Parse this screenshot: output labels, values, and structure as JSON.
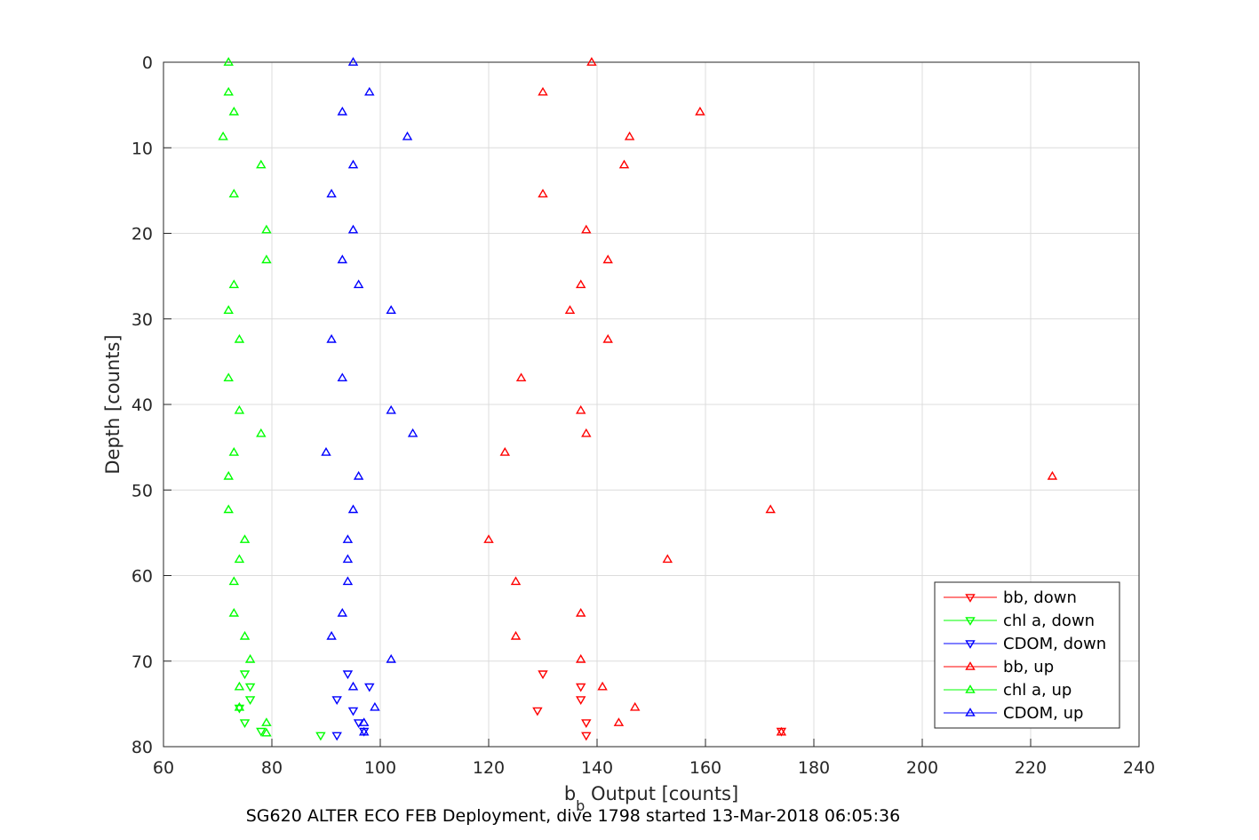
{
  "chart_data": {
    "type": "scatter",
    "xlabel_base": "b",
    "xlabel_subscript": "b",
    "xlabel_rest": " Output [counts]",
    "ylabel": "Depth [counts]",
    "caption": "SG620 ALTER ECO FEB Deployment, dive 1798 started 13-Mar-2018 06:05:36",
    "xlim": [
      60,
      240
    ],
    "ylim": [
      0,
      80
    ],
    "y_reversed": true,
    "grid": true,
    "xticks": [
      "60",
      "80",
      "100",
      "120",
      "140",
      "160",
      "180",
      "200",
      "220",
      "240"
    ],
    "yticks": [
      "0",
      "10",
      "20",
      "30",
      "40",
      "50",
      "60",
      "70",
      "80"
    ],
    "legend_position": "bottom-right",
    "series": [
      {
        "name": "bb, down",
        "color": "#ff0000",
        "marker": "triangle-down",
        "points": [
          [
            130,
            71.5
          ],
          [
            137,
            73
          ],
          [
            137,
            74.5
          ],
          [
            129,
            75.8
          ],
          [
            138,
            77.2
          ],
          [
            174,
            78.2
          ],
          [
            138,
            78.7
          ]
        ]
      },
      {
        "name": "chl a, down",
        "color": "#00ff00",
        "marker": "triangle-down",
        "points": [
          [
            75,
            71.5
          ],
          [
            76,
            73
          ],
          [
            76,
            74.5
          ],
          [
            74,
            75.5
          ],
          [
            75,
            77.2
          ],
          [
            78,
            78.2
          ],
          [
            89,
            78.7
          ]
        ]
      },
      {
        "name": "CDOM, down",
        "color": "#0000ff",
        "marker": "triangle-down",
        "points": [
          [
            94,
            71.5
          ],
          [
            98,
            73
          ],
          [
            92,
            74.5
          ],
          [
            95,
            75.8
          ],
          [
            96,
            77.2
          ],
          [
            97,
            78.2
          ],
          [
            92,
            78.7
          ]
        ]
      },
      {
        "name": "bb, up",
        "color": "#ff0000",
        "marker": "triangle-up",
        "points": [
          [
            139,
            0
          ],
          [
            130,
            3.5
          ],
          [
            159,
            5.8
          ],
          [
            146,
            8.7
          ],
          [
            145,
            12
          ],
          [
            130,
            15.4
          ],
          [
            138,
            19.6
          ],
          [
            142,
            23.1
          ],
          [
            137,
            26
          ],
          [
            135,
            29
          ],
          [
            142,
            32.4
          ],
          [
            126,
            36.9
          ],
          [
            137,
            40.7
          ],
          [
            138,
            43.4
          ],
          [
            123,
            45.6
          ],
          [
            224,
            48.4
          ],
          [
            172,
            52.3
          ],
          [
            120,
            55.8
          ],
          [
            153,
            58.1
          ],
          [
            125,
            60.7
          ],
          [
            137,
            64.4
          ],
          [
            125,
            67.1
          ],
          [
            137,
            69.8
          ],
          [
            141,
            73
          ],
          [
            147,
            75.4
          ],
          [
            144,
            77.2
          ],
          [
            174,
            78.3
          ]
        ]
      },
      {
        "name": "chl a, up",
        "color": "#00ff00",
        "marker": "triangle-up",
        "points": [
          [
            72,
            0
          ],
          [
            72,
            3.5
          ],
          [
            73,
            5.8
          ],
          [
            71,
            8.7
          ],
          [
            78,
            12
          ],
          [
            73,
            15.4
          ],
          [
            79,
            19.6
          ],
          [
            79,
            23.1
          ],
          [
            73,
            26
          ],
          [
            72,
            29
          ],
          [
            74,
            32.4
          ],
          [
            72,
            36.9
          ],
          [
            74,
            40.7
          ],
          [
            78,
            43.4
          ],
          [
            73,
            45.6
          ],
          [
            72,
            48.4
          ],
          [
            72,
            52.3
          ],
          [
            75,
            55.8
          ],
          [
            74,
            58.1
          ],
          [
            73,
            60.7
          ],
          [
            73,
            64.4
          ],
          [
            75,
            67.1
          ],
          [
            76,
            69.8
          ],
          [
            74,
            73
          ],
          [
            74,
            75.4
          ],
          [
            79,
            77.2
          ],
          [
            79,
            78.4
          ]
        ]
      },
      {
        "name": "CDOM, up",
        "color": "#0000ff",
        "marker": "triangle-up",
        "points": [
          [
            95,
            0
          ],
          [
            98,
            3.5
          ],
          [
            93,
            5.8
          ],
          [
            105,
            8.7
          ],
          [
            95,
            12
          ],
          [
            91,
            15.4
          ],
          [
            95,
            19.6
          ],
          [
            93,
            23.1
          ],
          [
            96,
            26
          ],
          [
            102,
            29
          ],
          [
            91,
            32.4
          ],
          [
            93,
            36.9
          ],
          [
            102,
            40.7
          ],
          [
            106,
            43.4
          ],
          [
            90,
            45.6
          ],
          [
            96,
            48.4
          ],
          [
            95,
            52.3
          ],
          [
            94,
            55.8
          ],
          [
            94,
            58.1
          ],
          [
            94,
            60.7
          ],
          [
            93,
            64.4
          ],
          [
            91,
            67.1
          ],
          [
            102,
            69.8
          ],
          [
            95,
            73
          ],
          [
            99,
            75.4
          ],
          [
            97,
            77.2
          ],
          [
            97,
            78.3
          ]
        ]
      }
    ]
  }
}
